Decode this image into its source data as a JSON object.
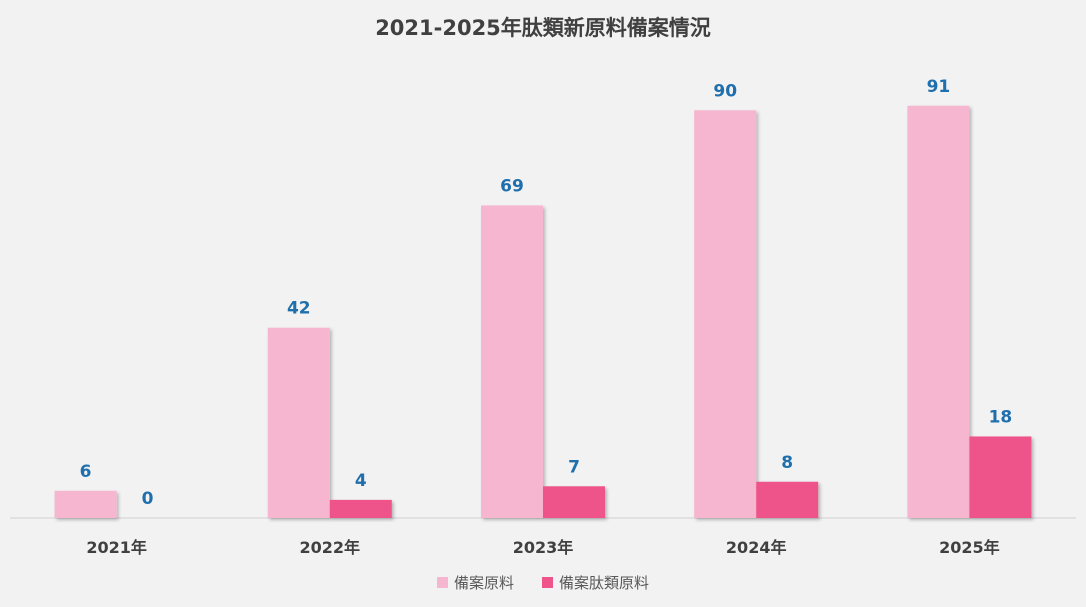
{
  "chart_data": {
    "type": "bar",
    "title": "2021-2025年肽類新原料備案情況",
    "categories": [
      "2021年",
      "2022年",
      "2023年",
      "2024年",
      "2025年"
    ],
    "series": [
      {
        "name": "備案原料",
        "values": [
          6,
          42,
          69,
          90,
          91
        ],
        "color": "#f7b6cf"
      },
      {
        "name": "備案肽類原料",
        "values": [
          0,
          4,
          7,
          8,
          18
        ],
        "color": "#ee538a"
      }
    ],
    "ylim": [
      0,
      100
    ],
    "grid": false,
    "legend_position": "bottom",
    "data_label_color": "#1f6fad"
  }
}
